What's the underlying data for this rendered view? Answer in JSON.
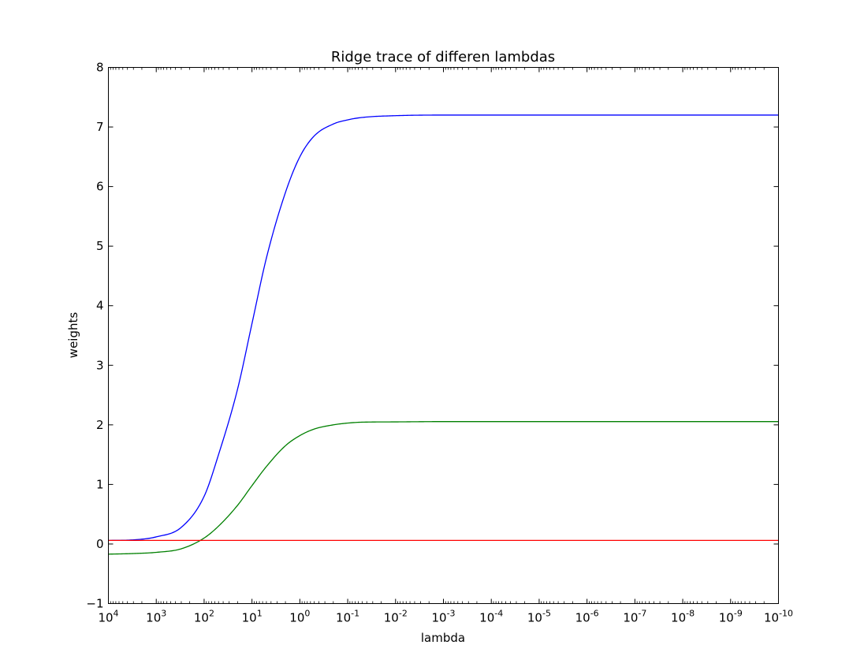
{
  "chart_data": {
    "type": "line",
    "title": "Ridge trace of differen lambdas",
    "xlabel": "lambda",
    "ylabel": "weights",
    "xscale": "log",
    "xaxis_direction": "decreasing",
    "xlim": [
      10000,
      1e-10
    ],
    "ylim": [
      -1,
      8
    ],
    "grid": false,
    "x_ticks": [
      {
        "base": "10",
        "exp": "4"
      },
      {
        "base": "10",
        "exp": "3"
      },
      {
        "base": "10",
        "exp": "2"
      },
      {
        "base": "10",
        "exp": "1"
      },
      {
        "base": "10",
        "exp": "0"
      },
      {
        "base": "10",
        "exp": "-1"
      },
      {
        "base": "10",
        "exp": "-2"
      },
      {
        "base": "10",
        "exp": "-3"
      },
      {
        "base": "10",
        "exp": "-4"
      },
      {
        "base": "10",
        "exp": "-5"
      },
      {
        "base": "10",
        "exp": "-6"
      },
      {
        "base": "10",
        "exp": "-7"
      },
      {
        "base": "10",
        "exp": "-8"
      },
      {
        "base": "10",
        "exp": "-9"
      },
      {
        "base": "10",
        "exp": "-10"
      }
    ],
    "y_ticks": [
      "−1",
      "0",
      "1",
      "2",
      "3",
      "4",
      "5",
      "6",
      "7",
      "8"
    ],
    "x": [
      10000,
      3000,
      1000,
      300,
      100,
      50,
      20,
      10,
      5,
      2,
      1,
      0.5,
      0.2,
      0.1,
      0.05,
      0.01,
      0.001,
      1e-10
    ],
    "series": [
      {
        "color": "#0000ff",
        "values": [
          0.06,
          0.07,
          0.12,
          0.28,
          0.8,
          1.5,
          2.6,
          3.7,
          4.8,
          5.9,
          6.5,
          6.85,
          7.05,
          7.12,
          7.16,
          7.19,
          7.2,
          7.2
        ]
      },
      {
        "color": "#008000",
        "values": [
          -0.17,
          -0.16,
          -0.14,
          -0.08,
          0.1,
          0.3,
          0.65,
          0.98,
          1.3,
          1.65,
          1.82,
          1.93,
          2.0,
          2.03,
          2.045,
          2.05,
          2.055,
          2.055
        ]
      },
      {
        "color": "#ff0000",
        "values": [
          0.06,
          0.06,
          0.06,
          0.06,
          0.06,
          0.06,
          0.06,
          0.06,
          0.06,
          0.06,
          0.06,
          0.06,
          0.06,
          0.06,
          0.06,
          0.06,
          0.06,
          0.06
        ]
      }
    ]
  }
}
